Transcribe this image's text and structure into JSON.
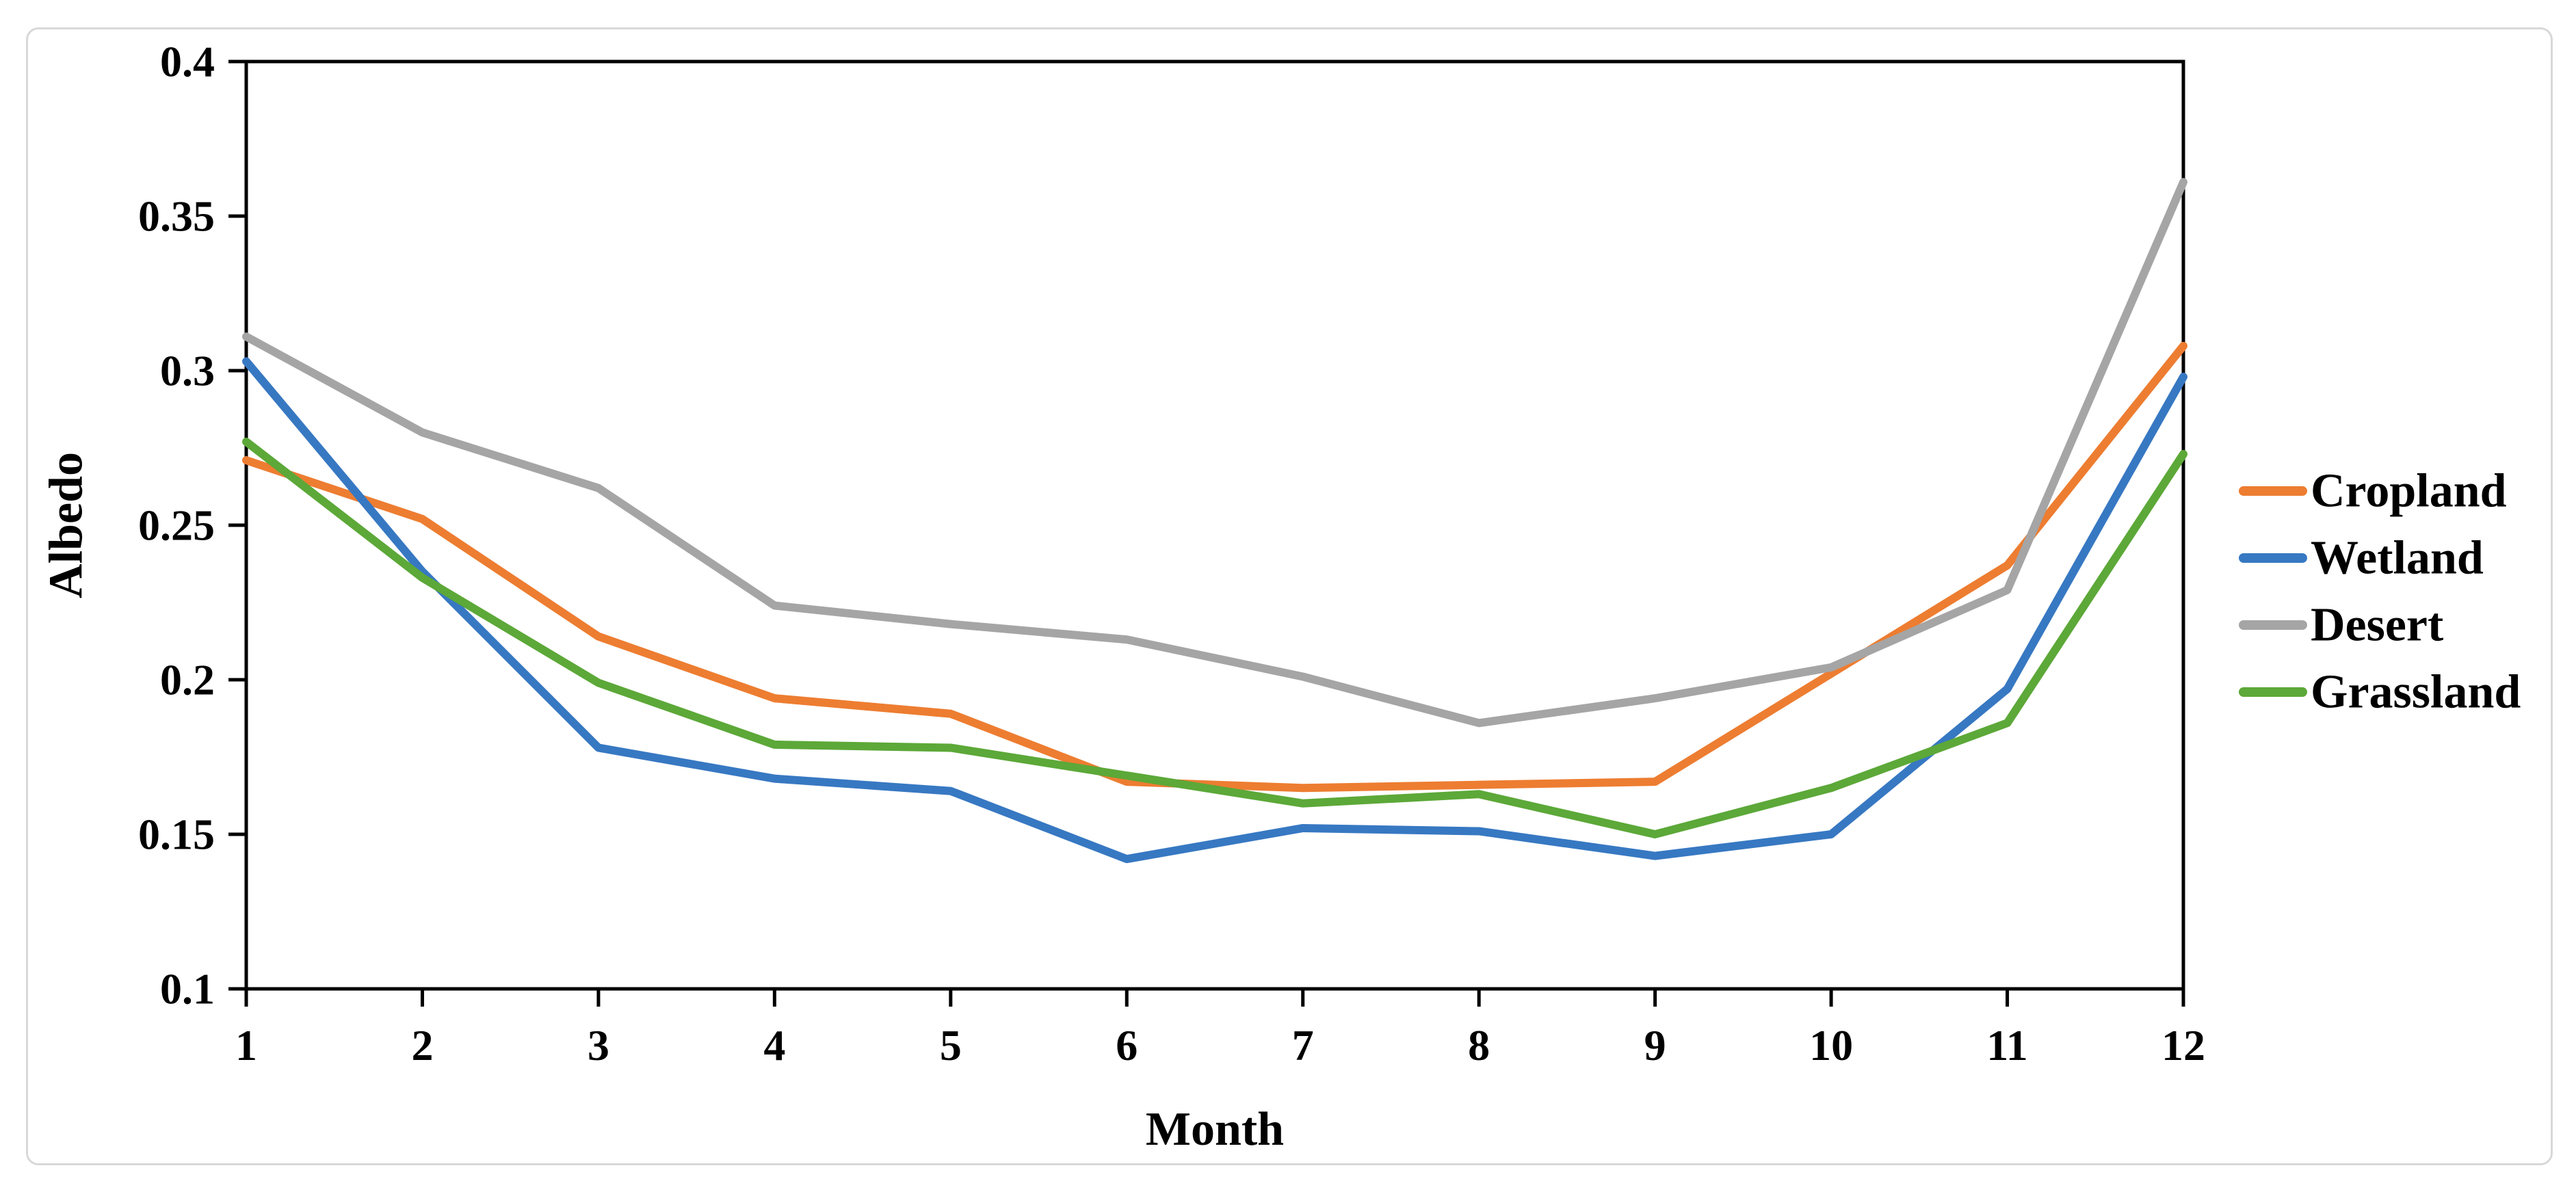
{
  "figure": {
    "background": "#ffffff",
    "card_border_color": "#d8d8d8",
    "axis_color": "#000000",
    "tick_label_color": "#000000"
  },
  "chart_data": {
    "type": "line",
    "title": "",
    "xlabel": "Month",
    "ylabel": "Albedo",
    "x": [
      1,
      2,
      3,
      4,
      5,
      6,
      7,
      8,
      9,
      10,
      11,
      12
    ],
    "xtick_labels": [
      "1",
      "2",
      "3",
      "4",
      "5",
      "6",
      "7",
      "8",
      "9",
      "10",
      "11",
      "12"
    ],
    "xlim": [
      1,
      12
    ],
    "ylim": [
      0.1,
      0.4
    ],
    "yticks": [
      0.1,
      0.15,
      0.2,
      0.25,
      0.3,
      0.35,
      0.4
    ],
    "ytick_labels": [
      "0.1",
      "0.15",
      "0.2",
      "0.25",
      "0.3",
      "0.35",
      "0.4"
    ],
    "grid": false,
    "legend_position": "right-outside",
    "series": [
      {
        "name": "Cropland",
        "color": "#ED7D31",
        "values": [
          0.271,
          0.252,
          0.214,
          0.194,
          0.189,
          0.167,
          0.165,
          0.166,
          0.167,
          0.202,
          0.237,
          0.308
        ]
      },
      {
        "name": "Wetland",
        "color": "#3778C2",
        "values": [
          0.303,
          0.235,
          0.178,
          0.168,
          0.164,
          0.142,
          0.152,
          0.151,
          0.143,
          0.15,
          0.197,
          0.298
        ]
      },
      {
        "name": "Desert",
        "color": "#A5A5A5",
        "values": [
          0.311,
          0.28,
          0.262,
          0.224,
          0.218,
          0.213,
          0.201,
          0.186,
          0.194,
          0.204,
          0.229,
          0.361
        ]
      },
      {
        "name": "Grassland",
        "color": "#5CA838",
        "values": [
          0.277,
          0.233,
          0.199,
          0.179,
          0.178,
          0.169,
          0.16,
          0.163,
          0.15,
          0.165,
          0.186,
          0.273
        ]
      }
    ]
  }
}
